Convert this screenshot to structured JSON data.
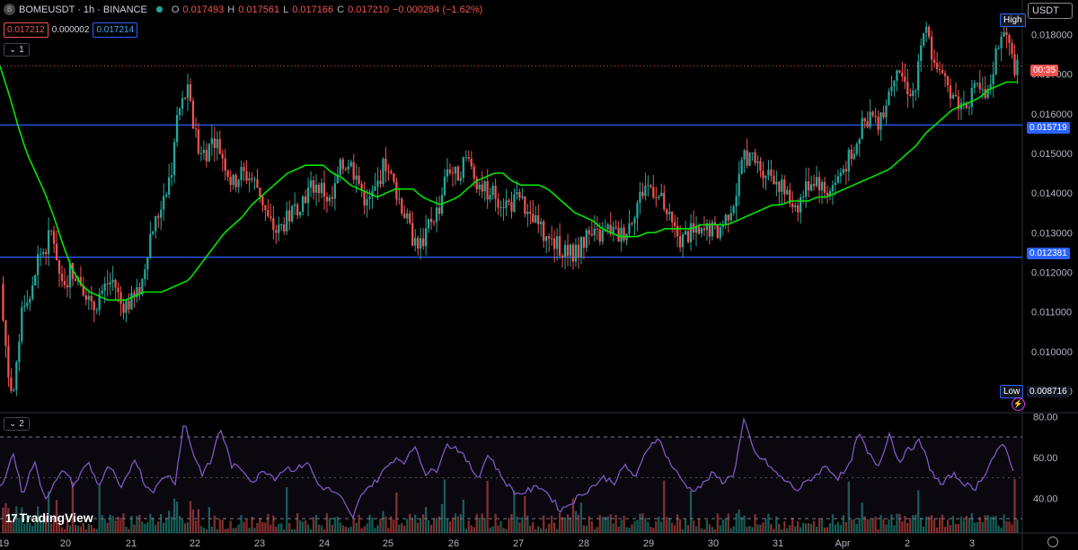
{
  "header": {
    "symbol": "BOMEUSDT · 1h · BINANCE",
    "logo_glyph": "B",
    "ohlc": {
      "o_label": "O",
      "o": "0.017493",
      "h_label": "H",
      "h": "0.017561",
      "l_label": "L",
      "l": "0.017166",
      "c_label": "C",
      "c": "0.017210",
      "change": "−0.000284 (−1.62%)"
    },
    "bid": "0.017212",
    "spread": "0.000002",
    "ask": "0.017214",
    "pane1_label": "1",
    "pane2_label": "2",
    "currency": "USDT",
    "brand": "TradingView",
    "brand_mark": "17"
  },
  "price_tags": {
    "high_label": "High",
    "low_label": "Low",
    "low_value": "0.008716",
    "countdown": "00:35",
    "line_upper": "0.015719",
    "line_lower": "0.012381"
  },
  "colors": {
    "up": "#26a69a",
    "down": "#ef5350",
    "ma": "#00e600",
    "rsi": "#7e57c2",
    "hline": "#2962ff"
  },
  "chart_data": {
    "type": "candlestick",
    "price_axis": {
      "min": 0.0085,
      "max": 0.0186,
      "ticks": [
        "0.018000",
        "0.017000",
        "0.016000",
        "0.015000",
        "0.014000",
        "0.013000",
        "0.012000",
        "0.011000",
        "0.010000",
        "0.009000"
      ]
    },
    "x_ticks": [
      "19",
      "20",
      "21",
      "22",
      "23",
      "24",
      "25",
      "26",
      "27",
      "28",
      "29",
      "30",
      "31",
      "Apr",
      "2",
      "3"
    ],
    "horizontal_lines": [
      0.015719,
      0.012381
    ],
    "current_price": 0.01721,
    "candle_count": 380,
    "anchors": [
      [
        0,
        0.0117
      ],
      [
        6,
        0.0106
      ],
      [
        12,
        0.0092
      ],
      [
        18,
        0.009
      ],
      [
        24,
        0.0106
      ],
      [
        30,
        0.0115
      ],
      [
        36,
        0.0113
      ],
      [
        44,
        0.0124
      ],
      [
        52,
        0.0126
      ],
      [
        60,
        0.0131
      ],
      [
        66,
        0.0122
      ],
      [
        72,
        0.0114
      ],
      [
        80,
        0.0121
      ],
      [
        88,
        0.0119
      ],
      [
        96,
        0.0116
      ],
      [
        104,
        0.011
      ],
      [
        112,
        0.0114
      ],
      [
        120,
        0.0117
      ],
      [
        128,
        0.0118
      ],
      [
        136,
        0.0112
      ],
      [
        144,
        0.0112
      ],
      [
        152,
        0.0113
      ],
      [
        160,
        0.0118
      ],
      [
        168,
        0.0129
      ],
      [
        176,
        0.0133
      ],
      [
        184,
        0.014
      ],
      [
        192,
        0.0145
      ],
      [
        200,
        0.016
      ],
      [
        210,
        0.0166
      ],
      [
        220,
        0.0153
      ],
      [
        230,
        0.015
      ],
      [
        240,
        0.0154
      ],
      [
        250,
        0.0149
      ],
      [
        260,
        0.0142
      ],
      [
        270,
        0.0145
      ],
      [
        280,
        0.0144
      ],
      [
        290,
        0.0141
      ],
      [
        300,
        0.0133
      ],
      [
        310,
        0.013
      ],
      [
        320,
        0.0133
      ],
      [
        330,
        0.0136
      ],
      [
        340,
        0.0139
      ],
      [
        350,
        0.0142
      ],
      [
        360,
        0.0141
      ],
      [
        370,
        0.0137
      ],
      [
        380,
        0.0146
      ],
      [
        390,
        0.0148
      ],
      [
        400,
        0.0143
      ],
      [
        410,
        0.0137
      ],
      [
        420,
        0.0141
      ],
      [
        430,
        0.0148
      ],
      [
        440,
        0.0142
      ],
      [
        450,
        0.0136
      ],
      [
        460,
        0.0129
      ],
      [
        470,
        0.0127
      ],
      [
        480,
        0.0133
      ],
      [
        490,
        0.0136
      ],
      [
        500,
        0.0147
      ],
      [
        510,
        0.0144
      ],
      [
        520,
        0.0149
      ],
      [
        530,
        0.0144
      ],
      [
        540,
        0.0141
      ],
      [
        550,
        0.014
      ],
      [
        560,
        0.0138
      ],
      [
        570,
        0.0137
      ],
      [
        580,
        0.0139
      ],
      [
        590,
        0.0133
      ],
      [
        600,
        0.0132
      ],
      [
        610,
        0.0128
      ],
      [
        620,
        0.0127
      ],
      [
        630,
        0.0126
      ],
      [
        640,
        0.0124
      ],
      [
        650,
        0.0128
      ],
      [
        660,
        0.0129
      ],
      [
        670,
        0.0129
      ],
      [
        680,
        0.0131
      ],
      [
        690,
        0.0129
      ],
      [
        700,
        0.0131
      ],
      [
        710,
        0.0137
      ],
      [
        720,
        0.0142
      ],
      [
        730,
        0.0141
      ],
      [
        740,
        0.0137
      ],
      [
        750,
        0.0131
      ],
      [
        760,
        0.0128
      ],
      [
        770,
        0.013
      ],
      [
        780,
        0.0129
      ],
      [
        790,
        0.0131
      ],
      [
        800,
        0.013
      ],
      [
        810,
        0.0134
      ],
      [
        820,
        0.0139
      ],
      [
        830,
        0.015
      ],
      [
        840,
        0.0148
      ],
      [
        850,
        0.0146
      ],
      [
        860,
        0.0145
      ],
      [
        870,
        0.0142
      ],
      [
        880,
        0.0138
      ],
      [
        890,
        0.0137
      ],
      [
        900,
        0.0142
      ],
      [
        910,
        0.0144
      ],
      [
        920,
        0.014
      ],
      [
        930,
        0.0142
      ],
      [
        940,
        0.0146
      ],
      [
        950,
        0.015
      ],
      [
        960,
        0.0156
      ],
      [
        970,
        0.016
      ],
      [
        980,
        0.0156
      ],
      [
        990,
        0.0165
      ],
      [
        1000,
        0.0173
      ],
      [
        1010,
        0.0167
      ],
      [
        1020,
        0.0165
      ],
      [
        1030,
        0.0182
      ],
      [
        1040,
        0.0175
      ],
      [
        1050,
        0.0168
      ],
      [
        1060,
        0.0166
      ],
      [
        1070,
        0.0162
      ],
      [
        1080,
        0.0164
      ],
      [
        1090,
        0.0166
      ],
      [
        1100,
        0.0163
      ],
      [
        1110,
        0.0175
      ],
      [
        1120,
        0.0181
      ],
      [
        1130,
        0.0172
      ]
    ],
    "ma_anchors": [
      [
        0,
        0.0172
      ],
      [
        10,
        0.0165
      ],
      [
        20,
        0.0157
      ],
      [
        30,
        0.015
      ],
      [
        40,
        0.0145
      ],
      [
        50,
        0.014
      ],
      [
        60,
        0.0134
      ],
      [
        70,
        0.0127
      ],
      [
        80,
        0.0121
      ],
      [
        90,
        0.0117
      ],
      [
        100,
        0.0115
      ],
      [
        110,
        0.0114
      ],
      [
        120,
        0.0113
      ],
      [
        130,
        0.0113
      ],
      [
        140,
        0.0113
      ],
      [
        150,
        0.0114
      ],
      [
        160,
        0.0115
      ],
      [
        170,
        0.0115
      ],
      [
        180,
        0.0115
      ],
      [
        190,
        0.0116
      ],
      [
        200,
        0.0117
      ],
      [
        210,
        0.0118
      ],
      [
        220,
        0.0121
      ],
      [
        230,
        0.0124
      ],
      [
        240,
        0.0127
      ],
      [
        250,
        0.013
      ],
      [
        260,
        0.0132
      ],
      [
        270,
        0.0134
      ],
      [
        280,
        0.0137
      ],
      [
        290,
        0.0139
      ],
      [
        300,
        0.0141
      ],
      [
        310,
        0.0143
      ],
      [
        320,
        0.0145
      ],
      [
        330,
        0.0146
      ],
      [
        340,
        0.0147
      ],
      [
        350,
        0.0147
      ],
      [
        360,
        0.0147
      ],
      [
        370,
        0.0145
      ],
      [
        380,
        0.0144
      ],
      [
        390,
        0.0142
      ],
      [
        400,
        0.0141
      ],
      [
        410,
        0.014
      ],
      [
        420,
        0.0139
      ],
      [
        430,
        0.014
      ],
      [
        440,
        0.0141
      ],
      [
        450,
        0.0141
      ],
      [
        460,
        0.0141
      ],
      [
        470,
        0.0139
      ],
      [
        480,
        0.0138
      ],
      [
        490,
        0.0137
      ],
      [
        500,
        0.0138
      ],
      [
        510,
        0.0139
      ],
      [
        520,
        0.0141
      ],
      [
        530,
        0.0143
      ],
      [
        540,
        0.0144
      ],
      [
        550,
        0.0145
      ],
      [
        560,
        0.0145
      ],
      [
        570,
        0.0143
      ],
      [
        580,
        0.0142
      ],
      [
        590,
        0.0142
      ],
      [
        600,
        0.0142
      ],
      [
        610,
        0.0141
      ],
      [
        620,
        0.0139
      ],
      [
        630,
        0.0137
      ],
      [
        640,
        0.0135
      ],
      [
        650,
        0.0134
      ],
      [
        660,
        0.0133
      ],
      [
        670,
        0.0131
      ],
      [
        680,
        0.013
      ],
      [
        690,
        0.0129
      ],
      [
        700,
        0.0129
      ],
      [
        710,
        0.0129
      ],
      [
        720,
        0.013
      ],
      [
        730,
        0.013
      ],
      [
        740,
        0.0131
      ],
      [
        750,
        0.0131
      ],
      [
        760,
        0.0131
      ],
      [
        770,
        0.0131
      ],
      [
        780,
        0.0132
      ],
      [
        790,
        0.0132
      ],
      [
        800,
        0.0132
      ],
      [
        810,
        0.0132
      ],
      [
        820,
        0.0133
      ],
      [
        830,
        0.0134
      ],
      [
        840,
        0.0135
      ],
      [
        850,
        0.0136
      ],
      [
        860,
        0.0137
      ],
      [
        870,
        0.0137
      ],
      [
        880,
        0.0138
      ],
      [
        890,
        0.0138
      ],
      [
        900,
        0.0138
      ],
      [
        910,
        0.0139
      ],
      [
        920,
        0.0139
      ],
      [
        930,
        0.014
      ],
      [
        940,
        0.0141
      ],
      [
        950,
        0.0142
      ],
      [
        960,
        0.0143
      ],
      [
        970,
        0.0144
      ],
      [
        980,
        0.0145
      ],
      [
        990,
        0.0146
      ],
      [
        1000,
        0.0148
      ],
      [
        1010,
        0.015
      ],
      [
        1020,
        0.0152
      ],
      [
        1030,
        0.0155
      ],
      [
        1040,
        0.0157
      ],
      [
        1050,
        0.0159
      ],
      [
        1060,
        0.0161
      ],
      [
        1070,
        0.0162
      ],
      [
        1080,
        0.0163
      ],
      [
        1090,
        0.0164
      ],
      [
        1100,
        0.0166
      ],
      [
        1110,
        0.0167
      ],
      [
        1120,
        0.0168
      ],
      [
        1130,
        0.0168
      ]
    ],
    "rsi": {
      "min": 23,
      "max": 81,
      "ticks": [
        "80.00",
        "60.00",
        "40.00"
      ],
      "bands": [
        70,
        30
      ],
      "anchors": [
        [
          0,
          45
        ],
        [
          15,
          62
        ],
        [
          25,
          42
        ],
        [
          38,
          58
        ],
        [
          50,
          40
        ],
        [
          62,
          48
        ],
        [
          72,
          54
        ],
        [
          82,
          46
        ],
        [
          98,
          58
        ],
        [
          110,
          46
        ],
        [
          122,
          56
        ],
        [
          135,
          44
        ],
        [
          150,
          60
        ],
        [
          162,
          46
        ],
        [
          172,
          44
        ],
        [
          185,
          52
        ],
        [
          195,
          48
        ],
        [
          205,
          78
        ],
        [
          215,
          62
        ],
        [
          225,
          52
        ],
        [
          235,
          58
        ],
        [
          245,
          75
        ],
        [
          258,
          56
        ],
        [
          270,
          54
        ],
        [
          282,
          48
        ],
        [
          294,
          54
        ],
        [
          306,
          50
        ],
        [
          318,
          55
        ],
        [
          330,
          54
        ],
        [
          342,
          58
        ],
        [
          355,
          46
        ],
        [
          368,
          44
        ],
        [
          380,
          40
        ],
        [
          392,
          30
        ],
        [
          405,
          44
        ],
        [
          418,
          48
        ],
        [
          430,
          55
        ],
        [
          440,
          60
        ],
        [
          452,
          58
        ],
        [
          462,
          66
        ],
        [
          474,
          52
        ],
        [
          486,
          54
        ],
        [
          496,
          66
        ],
        [
          508,
          65
        ],
        [
          520,
          58
        ],
        [
          532,
          50
        ],
        [
          544,
          62
        ],
        [
          556,
          52
        ],
        [
          566,
          46
        ],
        [
          576,
          42
        ],
        [
          590,
          44
        ],
        [
          602,
          46
        ],
        [
          614,
          40
        ],
        [
          624,
          34
        ],
        [
          636,
          38
        ],
        [
          648,
          42
        ],
        [
          660,
          46
        ],
        [
          672,
          50
        ],
        [
          684,
          48
        ],
        [
          696,
          56
        ],
        [
          708,
          50
        ],
        [
          720,
          64
        ],
        [
          732,
          70
        ],
        [
          745,
          58
        ],
        [
          757,
          50
        ],
        [
          769,
          44
        ],
        [
          781,
          46
        ],
        [
          793,
          52
        ],
        [
          805,
          48
        ],
        [
          817,
          52
        ],
        [
          828,
          78
        ],
        [
          840,
          62
        ],
        [
          852,
          58
        ],
        [
          864,
          52
        ],
        [
          876,
          48
        ],
        [
          888,
          44
        ],
        [
          898,
          48
        ],
        [
          910,
          52
        ],
        [
          920,
          56
        ],
        [
          932,
          50
        ],
        [
          944,
          54
        ],
        [
          956,
          72
        ],
        [
          966,
          62
        ],
        [
          978,
          56
        ],
        [
          990,
          72
        ],
        [
          1000,
          58
        ],
        [
          1012,
          64
        ],
        [
          1024,
          68
        ],
        [
          1036,
          54
        ],
        [
          1048,
          46
        ],
        [
          1060,
          52
        ],
        [
          1072,
          48
        ],
        [
          1084,
          44
        ],
        [
          1096,
          52
        ],
        [
          1108,
          62
        ],
        [
          1118,
          66
        ],
        [
          1130,
          52
        ]
      ]
    }
  }
}
